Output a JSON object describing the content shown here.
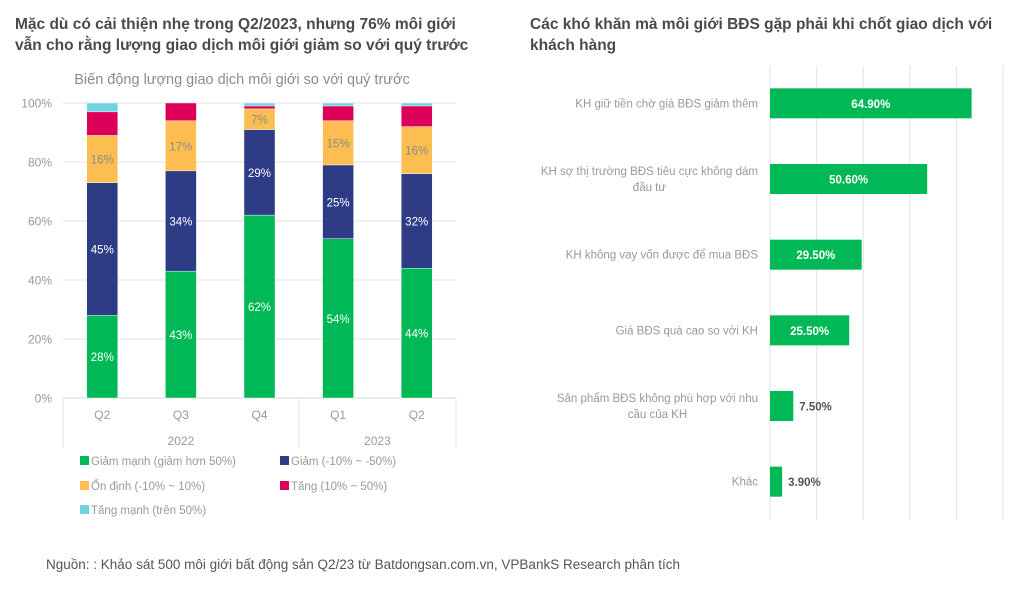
{
  "left_title": "Mặc dù có cải thiện nhẹ trong Q2/2023, nhưng 76% môi giới vẫn cho rằng lượng giao dịch môi giới giảm so với quý trước",
  "right_title": "Các khó khăn mà môi giới BĐS gặp phải khi chốt giao dịch với khách hàng",
  "source": "Nguồn: : Khảo sát 500 môi giới bất động sản Q2/23 từ Batdongsan.com.vn, VPBankS Research phân tích",
  "chart_data": [
    {
      "type": "bar",
      "stacked": true,
      "percent": true,
      "title": "Biến động lượng giao dịch môi giới so với quý trước",
      "categories": [
        "Q2",
        "Q3",
        "Q4",
        "Q1",
        "Q2"
      ],
      "category_groups": [
        {
          "label": "2022",
          "count": 3
        },
        {
          "label": "2023",
          "count": 2
        }
      ],
      "ylim": [
        0,
        100
      ],
      "yticks": [
        "0%",
        "20%",
        "40%",
        "60%",
        "80%",
        "100%"
      ],
      "grid": true,
      "legend_position": "bottom",
      "series": [
        {
          "name": "Giảm mạnh (giảm hơn 50%)",
          "color": "#00B956",
          "label_color": "#ffffff",
          "show_labels": true,
          "values": [
            28,
            43,
            62,
            54,
            44
          ]
        },
        {
          "name": "Giảm (-10% ~ -50%)",
          "color": "#2E3C85",
          "label_color": "#ffffff",
          "show_labels": true,
          "values": [
            45,
            34,
            29,
            25,
            32
          ]
        },
        {
          "name": "Ổn định (-10% ~ 10%)",
          "color": "#FDBE51",
          "label_color": "#8a8a8a",
          "show_labels": true,
          "values": [
            16,
            17,
            7,
            15,
            16
          ]
        },
        {
          "name": "Tăng (10% ~ 50%)",
          "color": "#DC0058",
          "label_color": "#ffffff",
          "show_labels": false,
          "values": [
            8,
            6,
            1,
            5,
            7
          ]
        },
        {
          "name": "Tăng mạnh (trên 50%)",
          "color": "#72D3E0",
          "label_color": "#ffffff",
          "show_labels": false,
          "values": [
            3,
            0,
            1,
            1,
            1
          ]
        }
      ]
    },
    {
      "type": "bar",
      "orientation": "horizontal",
      "title": "Các khó khăn mà môi giới BĐS gặp phải khi chốt giao dịch với khách hàng",
      "categories": [
        "KH giữ tiền chờ giá BĐS giảm thêm",
        "KH sợ thị trường BĐS tiêu cực không dám đầu tư",
        "KH không vay vốn được để mua BĐS",
        "Giá BĐS quá cao so với KH",
        "Sản phẩm BĐS không phù hợp với nhu cầu của KH",
        "Khác"
      ],
      "category_lines": [
        [
          "KH giữ tiền chờ giá BĐS giảm thêm"
        ],
        [
          "KH sợ thị trường BĐS tiêu cực không dám",
          "đầu tư"
        ],
        [
          "KH không vay vốn được để mua BĐS"
        ],
        [
          "Giá BĐS quá cao so với KH"
        ],
        [
          "Sản phẩm BĐS không phù hợp với nhu",
          "cầu của KH"
        ],
        [
          "Khác"
        ]
      ],
      "values": [
        64.9,
        50.6,
        29.5,
        25.5,
        7.5,
        3.9
      ],
      "data_labels": [
        "64.90%",
        "50.60%",
        "29.50%",
        "25.50%",
        "7.50%",
        "3.90%"
      ],
      "color": "#00B956",
      "xlim": [
        0,
        75
      ],
      "grid": true,
      "legend_position": "none"
    }
  ]
}
